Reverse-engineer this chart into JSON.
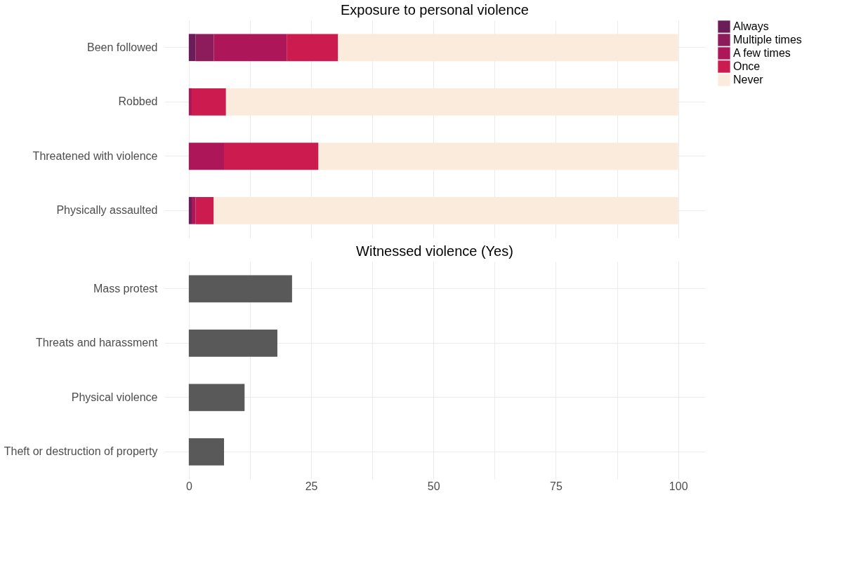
{
  "chart_data": [
    {
      "type": "bar",
      "title": "Exposure to personal violence",
      "orientation": "horizontal",
      "stacked": true,
      "categories": [
        "Been followed",
        "Robbed",
        "Threatened with violence",
        "Physically assaulted"
      ],
      "series": [
        {
          "name": "Always",
          "color": "#6b1d5a",
          "values": [
            1.4,
            0,
            0,
            0.6
          ]
        },
        {
          "name": "Multiple times",
          "color": "#8c1c5b",
          "values": [
            3.7,
            0,
            0,
            0
          ]
        },
        {
          "name": "A few times",
          "color": "#ad1759",
          "values": [
            14.9,
            0.6,
            7.2,
            0.8
          ]
        },
        {
          "name": "Once",
          "color": "#cb1b4f",
          "values": [
            10.5,
            7.0,
            19.3,
            3.7
          ]
        },
        {
          "name": "Never",
          "color": "#faebdd",
          "values": [
            69.5,
            92.4,
            73.5,
            94.9
          ]
        }
      ],
      "xlim": [
        -5,
        105.5
      ],
      "xticks": [
        0,
        {
          "value": 12.5,
          "label": null
        },
        25,
        {
          "value": 37.5,
          "label": null
        },
        50,
        {
          "value": 62.5,
          "label": null
        },
        75,
        {
          "value": 87.5,
          "label": null
        },
        100
      ],
      "grid": true,
      "legend": "right",
      "tick_labels": "y"
    },
    {
      "type": "bar",
      "title": "Witnessed violence (Yes)",
      "orientation": "horizontal",
      "categories": [
        "Mass protest",
        "Threats and harassment",
        "Physical violence",
        "Theft or destruction of property"
      ],
      "series": [
        {
          "color": "#595959",
          "values": [
            21.1,
            18.1,
            11.4,
            7.2
          ]
        }
      ],
      "xlim": [
        -5,
        105.5
      ],
      "xticks": [
        0,
        {
          "value": 12.5,
          "label": null
        },
        25,
        {
          "value": 37.5,
          "label": null
        },
        50,
        {
          "value": 62.5,
          "label": null
        },
        75,
        {
          "value": 87.5,
          "label": null
        },
        100
      ],
      "grid": true
    }
  ]
}
